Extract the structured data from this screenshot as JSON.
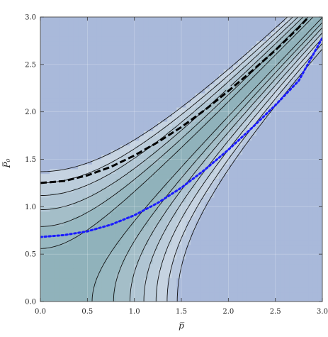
{
  "chart_data": {
    "type": "contour",
    "title": "",
    "xlabel": "p̅",
    "ylabel": "P̅₀",
    "xlim": [
      0,
      3
    ],
    "ylim": [
      0,
      3
    ],
    "x_ticks": [
      "0.0",
      "0.5",
      "1.0",
      "1.5",
      "2.0",
      "2.5",
      "3.0"
    ],
    "y_ticks": [
      "0.0",
      "0.5",
      "1.0",
      "1.5",
      "2.0",
      "2.5",
      "3.0"
    ],
    "x_tick_values": [
      0,
      0.5,
      1,
      1.5,
      2,
      2.5,
      3
    ],
    "y_tick_values": [
      0,
      0.5,
      1,
      1.5,
      2,
      2.5,
      3
    ],
    "grid": true,
    "contour_levels": [
      -3.5,
      -3,
      -2.5,
      -2,
      -1.5,
      -1,
      -0.5,
      0.5,
      1,
      1.5,
      2,
      2.5,
      3
    ],
    "level_colors": [
      "#a9b9da",
      "#b9c8de",
      "#c6d3e1",
      "#bccddb",
      "#b0c5d3",
      "#a4bec8",
      "#98b8c1",
      "#90b2bb",
      "#98b8c1",
      "#a4bec8",
      "#b0c5d3",
      "#bccddb",
      "#c6d3e1",
      "#a9b9da"
    ],
    "series": [
      {
        "style": "dashed",
        "color": "#000000",
        "x": [
          0,
          0.25,
          0.5,
          0.75,
          1,
          1.25,
          1.5,
          1.75,
          2,
          2.25,
          2.5,
          2.75,
          2.9
        ],
        "y": [
          1.25,
          1.27,
          1.33,
          1.42,
          1.54,
          1.68,
          1.84,
          2.02,
          2.22,
          2.43,
          2.65,
          2.89,
          3.05
        ]
      },
      {
        "style": "dotted",
        "color": "#1a1aff",
        "x": [
          0,
          0.25,
          0.5,
          0.75,
          1,
          1.25,
          1.5,
          1.75,
          2,
          2.25,
          2.5,
          2.75,
          3
        ],
        "y": [
          0.68,
          0.7,
          0.74,
          0.81,
          0.91,
          1.04,
          1.2,
          1.39,
          1.6,
          1.83,
          2.07,
          2.33,
          2.78
        ]
      }
    ]
  }
}
